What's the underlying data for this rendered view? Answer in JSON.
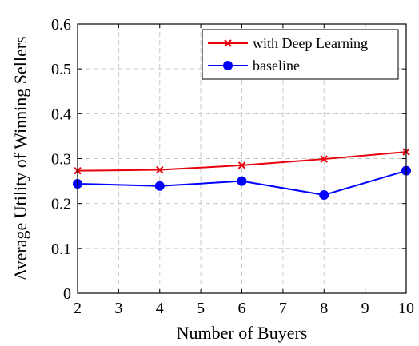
{
  "chart_data": {
    "type": "line",
    "xlabel": "Number of Buyers",
    "ylabel": "Average Utility of Winning Sellers",
    "xlim": [
      2,
      10
    ],
    "ylim": [
      0,
      0.6
    ],
    "xticks": [
      2,
      3,
      4,
      5,
      6,
      7,
      8,
      9,
      10
    ],
    "yticks": [
      0,
      0.1,
      0.2,
      0.3,
      0.4,
      0.5,
      0.6
    ],
    "ytick_labels": [
      "0",
      "0.1",
      "0.2",
      "0.3",
      "0.4",
      "0.5",
      "0.6"
    ],
    "grid": true,
    "legend_position": "top-right",
    "series": [
      {
        "name": "with Deep Learning",
        "color": "#e8000b",
        "marker": "x",
        "x": [
          2,
          4,
          6,
          8,
          10
        ],
        "y": [
          0.273,
          0.275,
          0.285,
          0.299,
          0.315
        ]
      },
      {
        "name": "baseline",
        "color": "#0000ff",
        "marker": "circle",
        "x": [
          2,
          4,
          6,
          8,
          10
        ],
        "y": [
          0.244,
          0.239,
          0.25,
          0.219,
          0.273
        ]
      }
    ]
  }
}
